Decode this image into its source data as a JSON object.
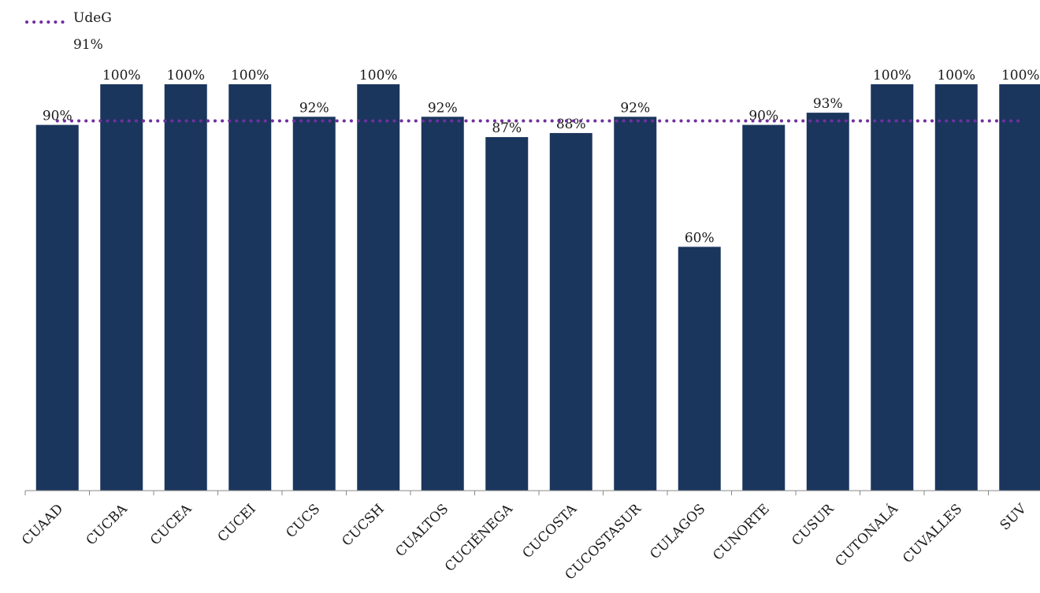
{
  "chart_data": {
    "type": "bar",
    "categories": [
      "CUAAD",
      "CUCBA",
      "CUCEA",
      "CUCEI",
      "CUCS",
      "CUCSH",
      "CUALTOS",
      "CUCIÉNEGA",
      "CUCOSTA",
      "CUCOSTASUR",
      "CULAGOS",
      "CUNORTE",
      "CUSUR",
      "CUTONALÁ",
      "CUVALLES",
      "SUV"
    ],
    "values": [
      90,
      100,
      100,
      100,
      92,
      100,
      92,
      87,
      88,
      92,
      60,
      90,
      93,
      100,
      100,
      100
    ],
    "value_labels": [
      "90%",
      "100%",
      "100%",
      "100%",
      "92%",
      "100%",
      "92%",
      "87%",
      "88%",
      "92%",
      "60%",
      "90%",
      "93%",
      "100%",
      "100%",
      "100%"
    ],
    "ylim": [
      0,
      100
    ],
    "grid": false,
    "bar_color": "#1b365d",
    "reference_line": {
      "name": "UdeG",
      "value": 91,
      "value_label": "91%",
      "color": "#7030a0",
      "style": "dotted"
    },
    "legend": "top-left"
  }
}
